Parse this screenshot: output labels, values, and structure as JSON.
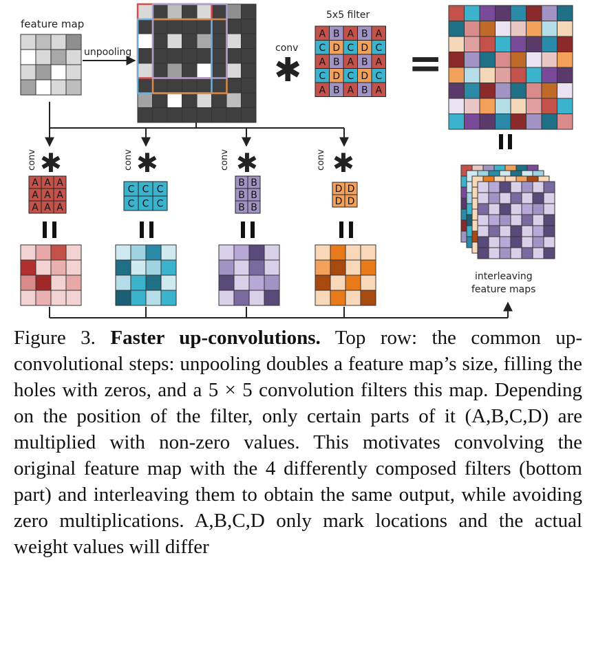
{
  "figure": {
    "feature_map_label": "feature map",
    "unpooling_label": "unpooling",
    "conv_label": "conv",
    "filter_label": "5x5 filter",
    "equals_symbol": "=",
    "conv_symbol": "✱",
    "interleaving_label_1": "interleaving",
    "interleaving_label_2": "feature maps",
    "filter_5x5": [
      [
        "A",
        "B",
        "A",
        "B",
        "A"
      ],
      [
        "C",
        "D",
        "C",
        "D",
        "C"
      ],
      [
        "A",
        "B",
        "A",
        "B",
        "A"
      ],
      [
        "C",
        "D",
        "C",
        "D",
        "C"
      ],
      [
        "A",
        "B",
        "A",
        "B",
        "A"
      ]
    ],
    "filter_A": [
      [
        "A",
        "A",
        "A"
      ],
      [
        "A",
        "A",
        "A"
      ],
      [
        "A",
        "A",
        "A"
      ]
    ],
    "filter_C": [
      [
        "C",
        "C",
        "C"
      ],
      [
        "C",
        "C",
        "C"
      ]
    ],
    "filter_B": [
      [
        "B",
        "B"
      ],
      [
        "B",
        "B"
      ],
      [
        "B",
        "B"
      ]
    ],
    "filter_D": [
      [
        "D",
        "D"
      ],
      [
        "D",
        "D"
      ]
    ],
    "colors": {
      "A": "#c4524a",
      "B": "#a193c3",
      "C": "#3cb3cc",
      "D": "#f2a05a"
    }
  },
  "caption": {
    "figure_number": "Figure 3.",
    "title": "Faster up-convolutions.",
    "text": "Top row: the common up-convolutional steps: unpooling doubles a feature map’s size, filling the holes with zeros, and a 5 × 5 convolution filters this map. Depending on the position of the filter, only certain parts of it (A,B,C,D) are multiplied with non-zero values. This motivates convolving the original feature map with the 4 differently composed filters (bottom part) and interleaving them to obtain the same output, while avoiding zero multiplications. A,B,C,D only mark locations and the actual weight values will differ"
  }
}
